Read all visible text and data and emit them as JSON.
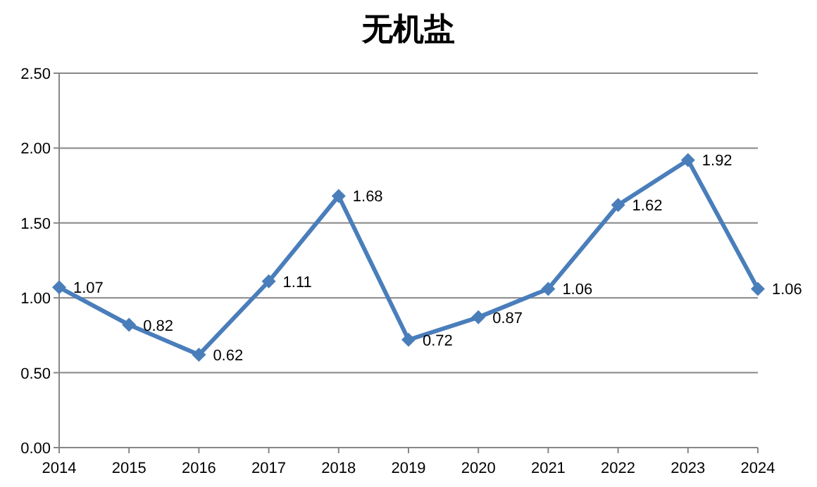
{
  "chart_data": {
    "type": "line",
    "title": "无机盐",
    "categories": [
      "2014",
      "2015",
      "2016",
      "2017",
      "2018",
      "2019",
      "2020",
      "2021",
      "2022",
      "2023",
      "2024"
    ],
    "values": [
      1.07,
      0.82,
      0.62,
      1.11,
      1.68,
      0.72,
      0.87,
      1.06,
      1.62,
      1.92,
      1.06
    ],
    "color": "#4a7ebb",
    "ylim": [
      0,
      2.5
    ],
    "yticks": [
      {
        "value": 0,
        "label": "0.00"
      },
      {
        "value": 0.5,
        "label": "0.50"
      },
      {
        "value": 1,
        "label": "1.00"
      },
      {
        "value": 1.5,
        "label": "1.50"
      },
      {
        "value": 2,
        "label": "2.00"
      },
      {
        "value": 2.5,
        "label": "2.50"
      }
    ],
    "grid": "y",
    "marker": "diamond",
    "data_labels": true
  }
}
